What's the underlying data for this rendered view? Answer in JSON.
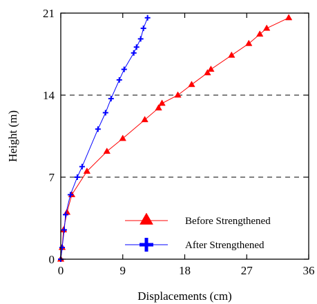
{
  "chart_data": {
    "type": "line",
    "title": "",
    "xlabel": "Displacements (cm)",
    "ylabel": "Height (m)",
    "xlim": [
      0,
      36
    ],
    "ylim": [
      0,
      21
    ],
    "xticks": [
      "0",
      "9",
      "18",
      "27",
      "36"
    ],
    "yticks": [
      "0",
      "7",
      "14",
      "21"
    ],
    "grid": "dashed horizontal lines at 7 and 14",
    "legend_position": "bottom-right",
    "series": [
      {
        "name": "Before Strengthened",
        "color": "#ff0000",
        "marker": "triangle",
        "x": [
          0.0,
          0.2,
          0.4,
          0.9,
          1.6,
          3.8,
          6.7,
          9.0,
          12.2,
          14.2,
          14.7,
          17.0,
          19.0,
          21.3,
          21.8,
          24.8,
          27.3,
          28.9,
          29.9,
          33.1
        ],
        "y": [
          0.0,
          1.0,
          2.5,
          4.0,
          5.5,
          7.5,
          9.2,
          10.3,
          11.9,
          12.9,
          13.3,
          14.0,
          14.9,
          15.9,
          16.2,
          17.4,
          18.4,
          19.2,
          19.7,
          20.6
        ]
      },
      {
        "name": "After Strengthened",
        "color": "#0000ff",
        "marker": "plus",
        "x": [
          0.0,
          0.2,
          0.5,
          0.7,
          1.4,
          2.4,
          3.1,
          5.4,
          6.5,
          7.3,
          8.5,
          9.2,
          10.6,
          11.0,
          11.6,
          12.0,
          12.6
        ],
        "y": [
          0.0,
          1.0,
          2.5,
          3.8,
          5.5,
          7.0,
          7.9,
          11.1,
          12.5,
          13.7,
          15.3,
          16.2,
          17.6,
          18.1,
          18.8,
          19.7,
          20.6
        ]
      }
    ]
  }
}
